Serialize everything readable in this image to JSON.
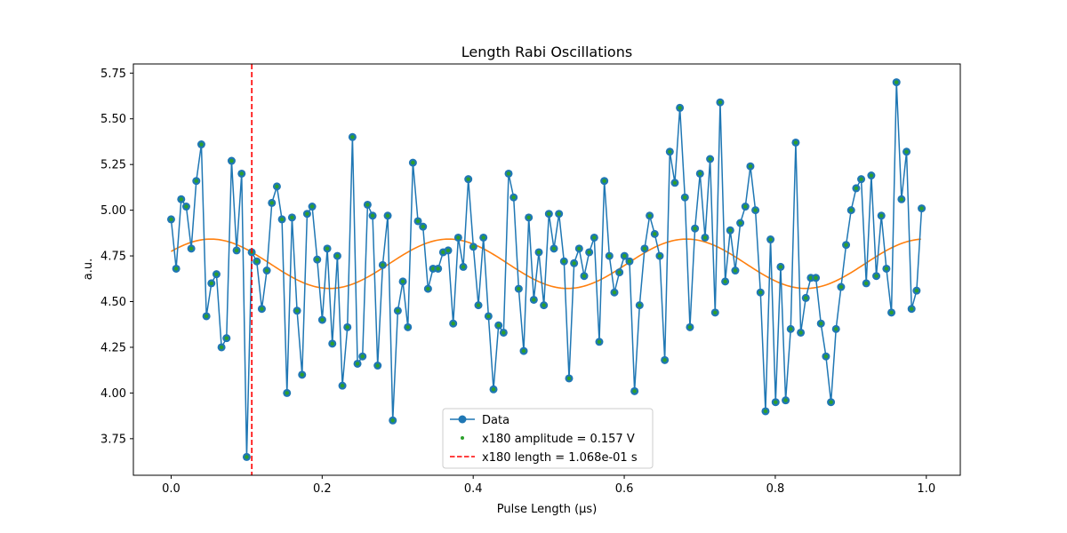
{
  "chart_data": {
    "type": "line",
    "title": "Length Rabi Oscillations",
    "xlabel": "Pulse Length (μs)",
    "ylabel": "a.u.",
    "xlim": [
      -0.05,
      1.045
    ],
    "ylim": [
      3.55,
      5.8
    ],
    "xticks": [
      0.0,
      0.2,
      0.4,
      0.6,
      0.8,
      1.0
    ],
    "xtick_labels": [
      "0.0",
      "0.2",
      "0.4",
      "0.6",
      "0.8",
      "1.0"
    ],
    "yticks": [
      3.75,
      4.0,
      4.25,
      4.5,
      4.75,
      5.0,
      5.25,
      5.5,
      5.75
    ],
    "ytick_labels": [
      "3.75",
      "4.00",
      "4.25",
      "4.50",
      "4.75",
      "5.00",
      "5.25",
      "5.50",
      "5.75"
    ],
    "grid": false,
    "legend_position": "bottom-center",
    "series": [
      {
        "name": "Data",
        "kind": "line-marker",
        "color": "#1f77b4",
        "x_start": 0.0,
        "x_step": 0.00667,
        "values": [
          4.95,
          4.68,
          5.06,
          5.02,
          4.79,
          5.16,
          5.36,
          4.42,
          4.6,
          4.65,
          4.25,
          4.3,
          5.27,
          4.78,
          5.2,
          3.65,
          4.77,
          4.72,
          4.46,
          4.67,
          5.04,
          5.13,
          4.95,
          4.0,
          4.96,
          4.45,
          4.1,
          4.98,
          5.02,
          4.73,
          4.4,
          4.79,
          4.27,
          4.75,
          4.04,
          4.36,
          5.4,
          4.16,
          4.2,
          5.03,
          4.97,
          4.15,
          4.7,
          4.97,
          3.85,
          4.45,
          4.61,
          4.36,
          5.26,
          4.94,
          4.91,
          4.57,
          4.68,
          4.68,
          4.77,
          4.78,
          4.38,
          4.85,
          4.69,
          5.17,
          4.8,
          4.48,
          4.85,
          4.42,
          4.02,
          4.37,
          4.33,
          5.2,
          5.07,
          4.57,
          4.23,
          4.96,
          4.51,
          4.77,
          4.48,
          4.98,
          4.79,
          4.98,
          4.72,
          4.08,
          4.71,
          4.79,
          4.64,
          4.77,
          4.85,
          4.28,
          5.16,
          4.75,
          4.55,
          4.66,
          4.75,
          4.72,
          4.01,
          4.48,
          4.79,
          4.97,
          4.87,
          4.75,
          4.18,
          5.32,
          5.15,
          5.56,
          5.07,
          4.36,
          4.9,
          5.2,
          4.85,
          5.28,
          4.44,
          5.59,
          4.61,
          4.89,
          4.67,
          4.93,
          5.02,
          5.24,
          5.0,
          4.55,
          3.9,
          4.84,
          3.95,
          4.69,
          3.96,
          4.35,
          5.37,
          4.33,
          4.52,
          4.63,
          4.63,
          4.38,
          4.2,
          3.95,
          4.35,
          4.58,
          4.81,
          5.0,
          5.12,
          5.17,
          4.6,
          5.19,
          4.64,
          4.97,
          4.68,
          4.44,
          5.7,
          5.06,
          5.32,
          4.46,
          4.56,
          5.01
        ]
      },
      {
        "name": "x180 amplitude = 0.157 V",
        "kind": "fit",
        "color": "#ff7f0e",
        "marker_color": "#2ca02c",
        "offset": 4.707,
        "amplitude": 0.135,
        "period": 0.315,
        "phase_x": 0.0525,
        "x_range": [
          0.0,
          0.993
        ]
      },
      {
        "name": "x180 length = 1.068e-01 s",
        "kind": "vline",
        "color": "#ff0000",
        "x": 0.1068
      }
    ]
  }
}
